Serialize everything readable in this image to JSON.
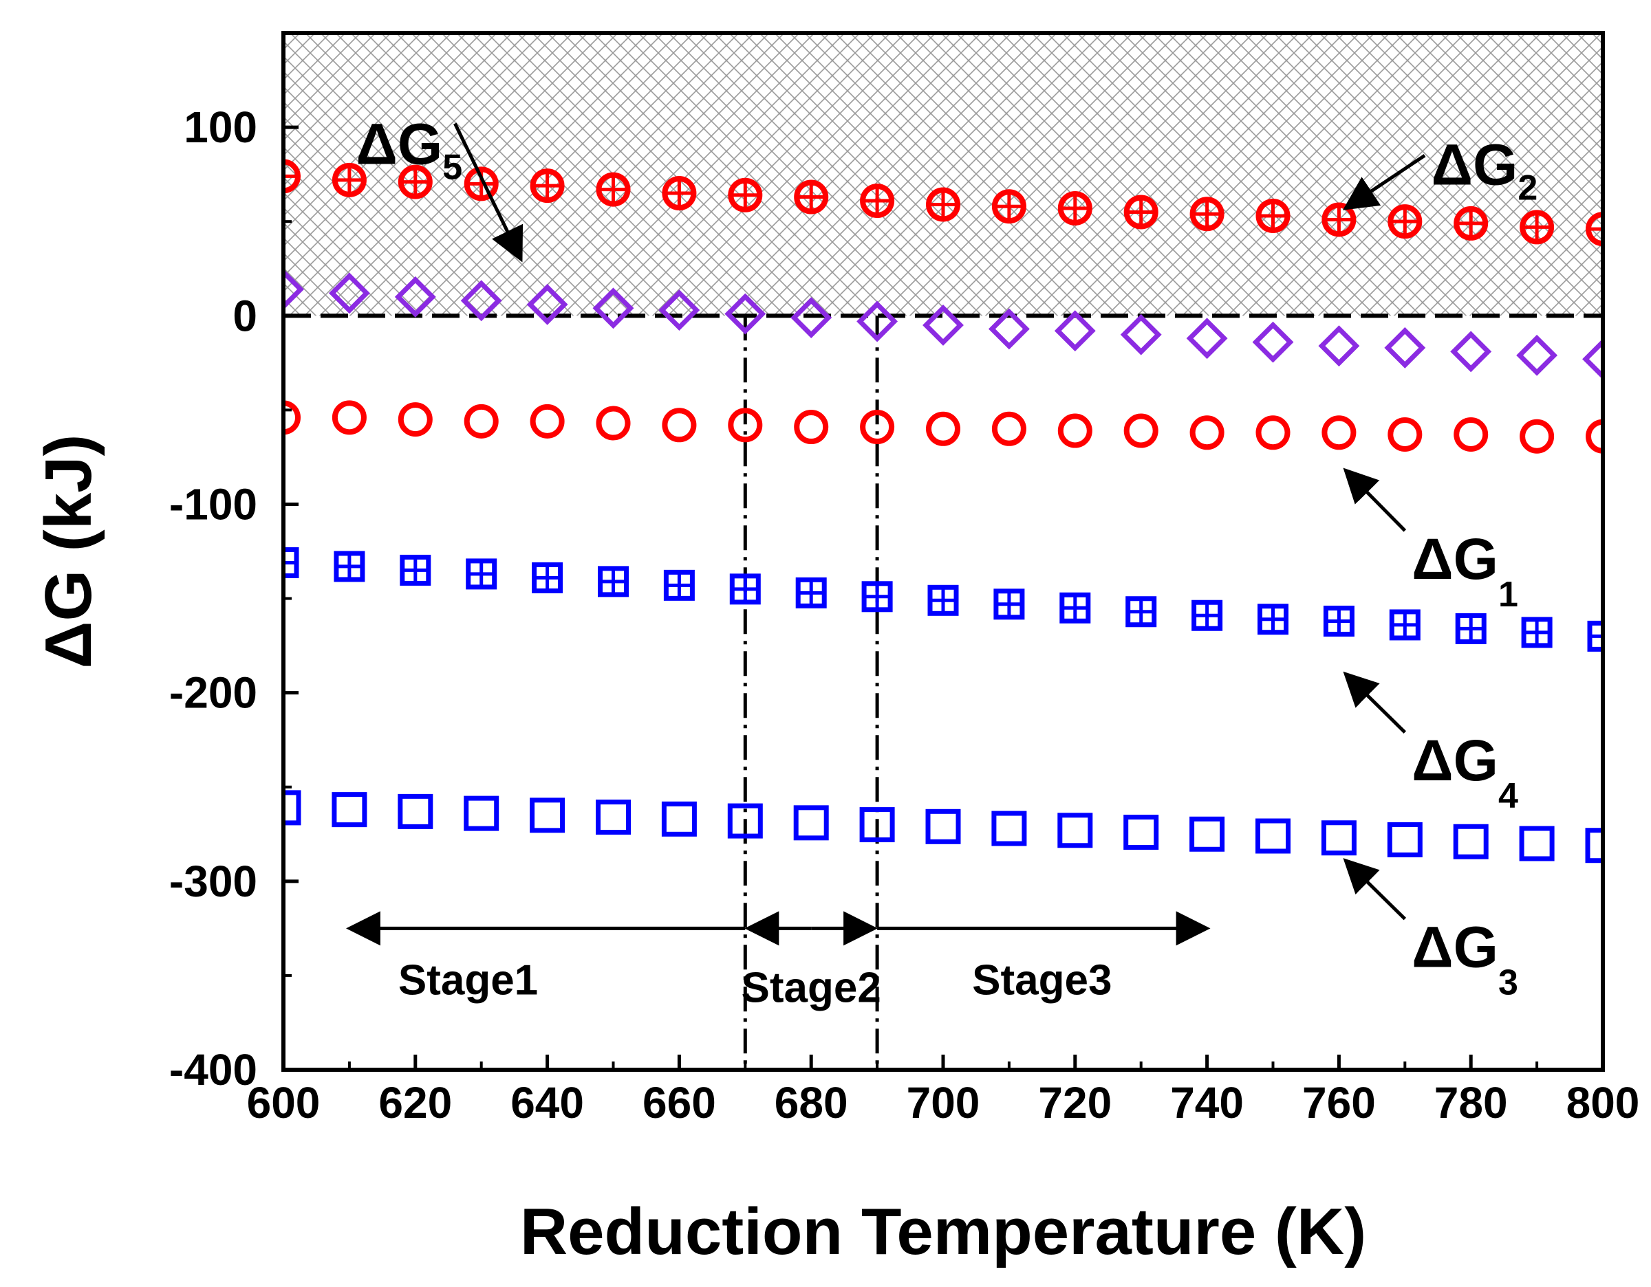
{
  "chart_data": {
    "type": "scatter",
    "title": "",
    "xlabel": "Reduction Temperature (K)",
    "ylabel": "ΔG (kJ)",
    "xlim": [
      600,
      800
    ],
    "ylim": [
      -400,
      150
    ],
    "x_ticks": [
      "600",
      "620",
      "640",
      "660",
      "680",
      "700",
      "720",
      "740",
      "760",
      "780",
      "800"
    ],
    "y_ticks": [
      "100",
      "0",
      "-100",
      "-200",
      "-300",
      "-400"
    ],
    "hatched_region": {
      "y_from": 0,
      "y_to": 150
    },
    "x": [
      600,
      610,
      620,
      630,
      640,
      650,
      660,
      670,
      680,
      690,
      700,
      710,
      720,
      730,
      740,
      750,
      760,
      770,
      780,
      790,
      800
    ],
    "series": [
      {
        "name": "ΔG2",
        "marker": "circle-cross",
        "color": "#ff0000",
        "values": [
          74,
          72,
          71,
          70,
          69,
          67,
          65,
          64,
          63,
          61,
          59,
          58,
          57,
          55,
          54,
          53,
          51,
          50,
          49,
          47,
          46
        ]
      },
      {
        "name": "ΔG5",
        "marker": "diamond",
        "color": "#8b2be2",
        "values": [
          14,
          12,
          10,
          8,
          6,
          4,
          3,
          1,
          -1,
          -3,
          -5,
          -7,
          -8,
          -10,
          -12,
          -14,
          -16,
          -17,
          -19,
          -21,
          -23
        ]
      },
      {
        "name": "ΔG1",
        "marker": "circle",
        "color": "#ff0000",
        "values": [
          -54,
          -54,
          -55,
          -56,
          -56,
          -57,
          -58,
          -58,
          -59,
          -59,
          -60,
          -60,
          -61,
          -61,
          -62,
          -62,
          -62,
          -63,
          -63,
          -64,
          -64
        ]
      },
      {
        "name": "ΔG4",
        "marker": "square-cross",
        "color": "#0000ff",
        "values": [
          -131,
          -133,
          -135,
          -137,
          -139,
          -141,
          -143,
          -145,
          -147,
          -149,
          -151,
          -153,
          -155,
          -157,
          -159,
          -161,
          -162,
          -164,
          -166,
          -168,
          -170
        ]
      },
      {
        "name": "ΔG3",
        "marker": "square",
        "color": "#0000ff",
        "values": [
          -261,
          -262,
          -263,
          -264,
          -265,
          -266,
          -267,
          -268,
          -269,
          -270,
          -271,
          -272,
          -273,
          -274,
          -275,
          -276,
          -277,
          -278,
          -279,
          -280,
          -281
        ]
      }
    ],
    "annotations": [
      {
        "id": "g5",
        "base": "ΔG",
        "sub": "5",
        "arrow_from": [
          626,
          102
        ],
        "arrow_to": [
          636,
          30
        ]
      },
      {
        "id": "g2",
        "base": "ΔG",
        "sub": "2",
        "arrow_from": [
          773,
          85
        ],
        "arrow_to": [
          761,
          57
        ]
      },
      {
        "id": "g1",
        "base": "ΔG",
        "sub": "1",
        "arrow_from": [
          770,
          -114
        ],
        "arrow_to": [
          761,
          -82
        ]
      },
      {
        "id": "g4",
        "base": "ΔG",
        "sub": "4",
        "arrow_from": [
          770,
          -221
        ],
        "arrow_to": [
          761,
          -190
        ]
      },
      {
        "id": "g3",
        "base": "ΔG",
        "sub": "3",
        "arrow_from": [
          770,
          -320
        ],
        "arrow_to": [
          761,
          -289
        ]
      }
    ],
    "stage_boundaries": [
      670,
      690
    ],
    "stage_arrow_y": -325,
    "stages": [
      {
        "label": "Stage1",
        "from": 610,
        "to": 670,
        "label_x": 628,
        "label_y": -352
      },
      {
        "label": "Stage2",
        "from": 670,
        "to": 690,
        "label_x": 680,
        "label_y": -356
      },
      {
        "label": "Stage3",
        "from": 690,
        "to": 740,
        "label_x": 715,
        "label_y": -352
      }
    ]
  }
}
